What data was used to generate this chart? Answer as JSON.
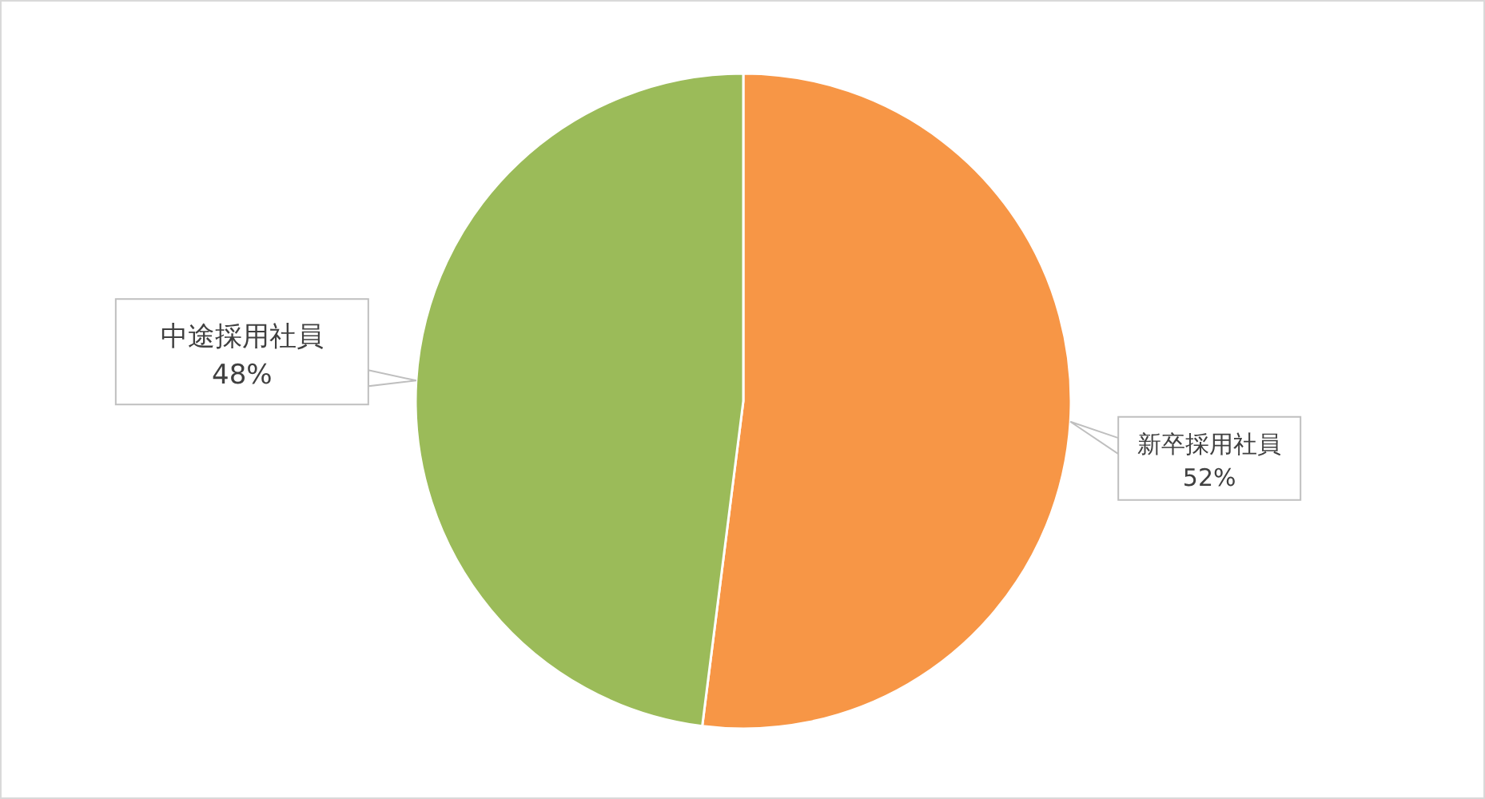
{
  "chart_data": {
    "type": "pie",
    "categories": [
      "新卒採用社員",
      "中途採用社員"
    ],
    "values": [
      52,
      48
    ],
    "value_labels": [
      "52%",
      "48%"
    ],
    "colors": [
      "#f79646",
      "#9bbb59"
    ]
  }
}
